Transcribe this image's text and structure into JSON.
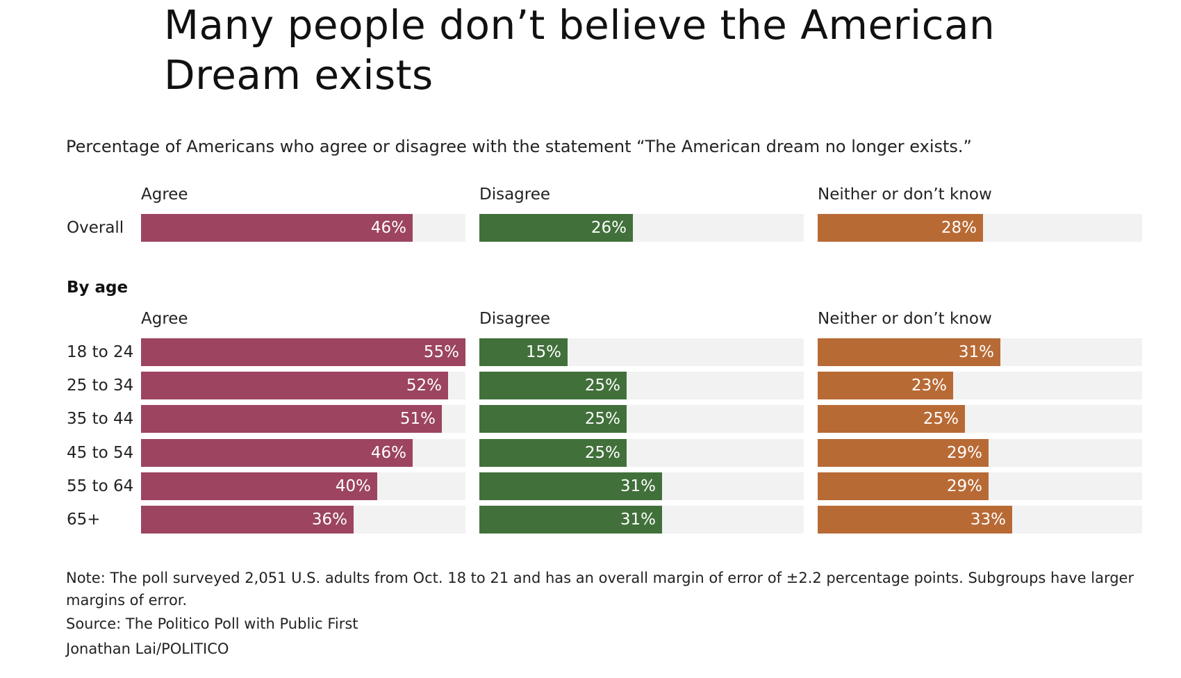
{
  "title": "Many people don’t believe the American Dream exists",
  "subtitle": "Percentage of Americans who agree or disagree with the statement “The American dream no longer exists.”",
  "section_label": "By age",
  "notes": {
    "note": "Note: The poll surveyed 2,051 U.S. adults from Oct. 18 to 21 and has an overall margin of error of ±2.2 percentage points. Subgroups have larger margins of error.",
    "source": "Source: The Politico Poll with Public First",
    "credit": "Jonathan Lai/POLITICO"
  },
  "colors": {
    "agree": "#9c4460",
    "disagree": "#41703a",
    "neither": "#b86a35",
    "track": "#f2f2f2"
  },
  "chart_data": {
    "type": "bar",
    "title": "Many people don’t believe the American Dream exists",
    "subtitle": "Percentage of Americans who agree or disagree with the statement “The American dream no longer exists.”",
    "xlim": [
      0,
      55
    ],
    "categories_overall": [
      "Overall"
    ],
    "categories_age": [
      "18 to 24",
      "25 to 34",
      "35 to 44",
      "45 to 54",
      "55 to 64",
      "65+"
    ],
    "series": [
      {
        "name": "Agree",
        "overall": [
          46
        ],
        "by_age": [
          55,
          52,
          51,
          46,
          40,
          36
        ]
      },
      {
        "name": "Disagree",
        "overall": [
          26
        ],
        "by_age": [
          15,
          25,
          25,
          25,
          31,
          31
        ]
      },
      {
        "name": "Neither or don’t know",
        "overall": [
          28
        ],
        "by_age": [
          31,
          23,
          25,
          29,
          29,
          33
        ]
      }
    ],
    "value_suffix": "%"
  }
}
